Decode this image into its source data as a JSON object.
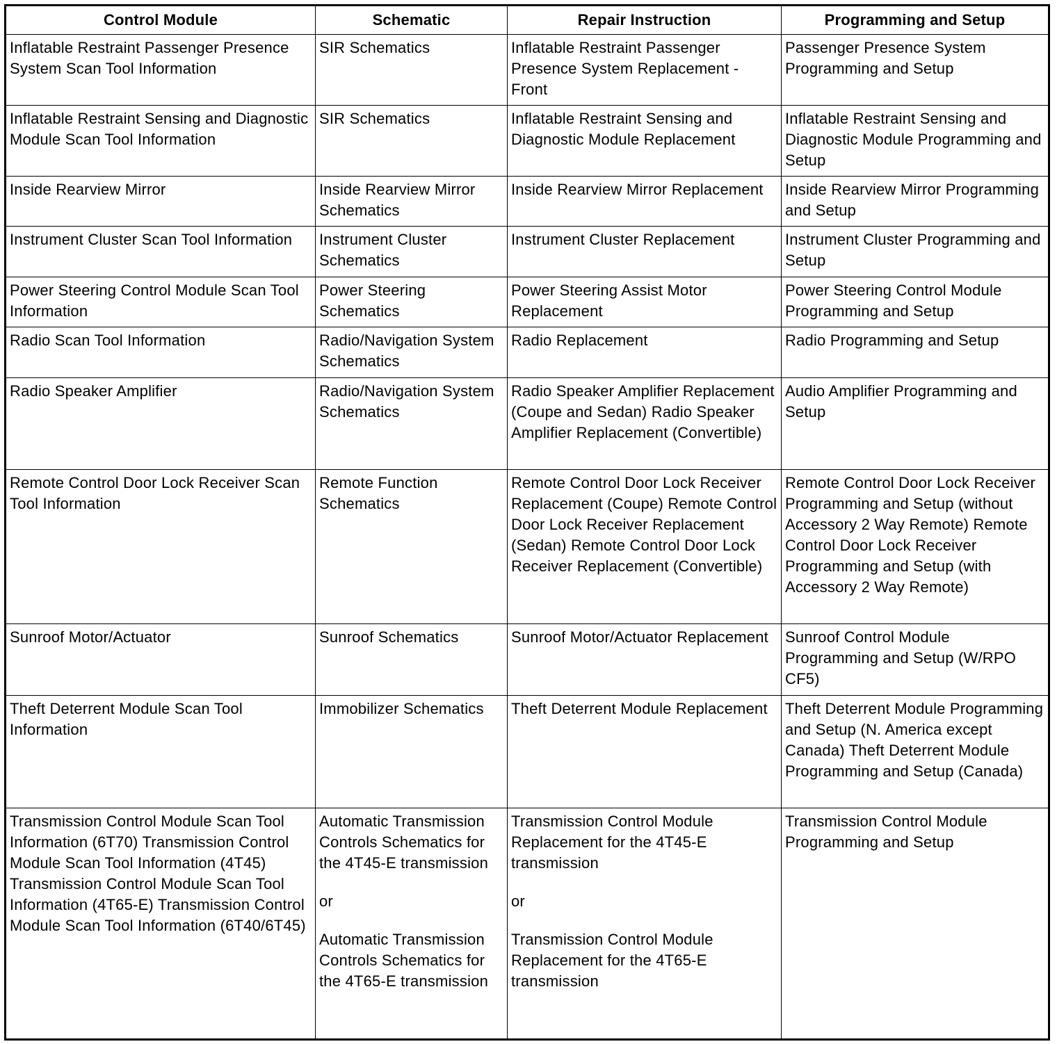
{
  "table": {
    "header": [
      "Control Module",
      "Schematic",
      "Repair Instruction",
      "Programming and Setup"
    ],
    "rows": [
      [
        "Inflatable Restraint Passenger Presence System Scan Tool Information",
        "SIR Schematics",
        "Inflatable Restraint Passenger Presence System Replacement - Front",
        "Passenger Presence System Programming and Setup"
      ],
      [
        "Inflatable Restraint Sensing and Diagnostic Module Scan Tool Information",
        "SIR Schematics",
        "Inflatable Restraint Sensing and Diagnostic Module Replacement",
        "Inflatable Restraint Sensing and Diagnostic Module Programming and Setup"
      ],
      [
        "Inside Rearview Mirror",
        "Inside Rearview Mirror Schematics",
        "Inside Rearview Mirror Replacement",
        "Inside Rearview Mirror Programming and Setup"
      ],
      [
        "Instrument Cluster Scan Tool Information",
        "Instrument Cluster Schematics",
        "Instrument Cluster Replacement",
        "Instrument Cluster Programming and Setup"
      ],
      [
        "Power Steering Control Module Scan Tool Information",
        "Power Steering Schematics",
        "Power Steering Assist Motor Replacement",
        "Power Steering Control Module Programming and Setup"
      ],
      [
        "Radio Scan Tool Information",
        "Radio/Navigation System Schematics",
        "Radio Replacement",
        "Radio Programming and Setup"
      ],
      [
        "Radio Speaker Amplifier",
        "Radio/Navigation System Schematics",
        "Radio Speaker Amplifier Replacement (Coupe and Sedan) Radio Speaker Amplifier Replacement (Convertible)",
        "Audio Amplifier Programming and Setup"
      ],
      [
        "Remote Control Door Lock Receiver Scan Tool Information",
        "Remote Function Schematics",
        "Remote Control Door Lock Receiver Replacement (Coupe) Remote Control Door Lock Receiver Replacement (Sedan) Remote Control Door Lock Receiver Replacement (Convertible)",
        "Remote Control Door Lock Receiver Programming and Setup (without Accessory 2 Way Remote) Remote Control Door Lock Receiver Programming and Setup (with Accessory 2 Way Remote)"
      ],
      [
        "Sunroof Motor/Actuator",
        "Sunroof Schematics",
        "Sunroof Motor/Actuator Replacement",
        "Sunroof Control Module Programming and Setup (W/RPO CF5)"
      ],
      [
        "Theft Deterrent Module Scan Tool Information",
        "Immobilizer Schematics",
        "Theft Deterrent Module Replacement",
        "Theft Deterrent Module Programming and Setup (N. America except Canada) Theft Deterrent Module Programming and Setup (Canada)"
      ],
      [
        "Transmission Control Module Scan Tool Information (6T70) Transmission Control Module Scan Tool Information (4T45) Transmission Control Module Scan Tool Information (4T65-E) Transmission Control Module Scan Tool Information (6T40/6T45)",
        [
          "Automatic Transmission Controls Schematics for the 4T45-E transmission",
          "or",
          "Automatic Transmission Controls Schematics for the 4T65-E transmission"
        ],
        [
          "Transmission Control Module Replacement for the 4T45-E transmission",
          "or",
          "Transmission Control Module Replacement for the 4T65-E transmission"
        ],
        "Transmission Control Module Programming and Setup"
      ]
    ]
  }
}
